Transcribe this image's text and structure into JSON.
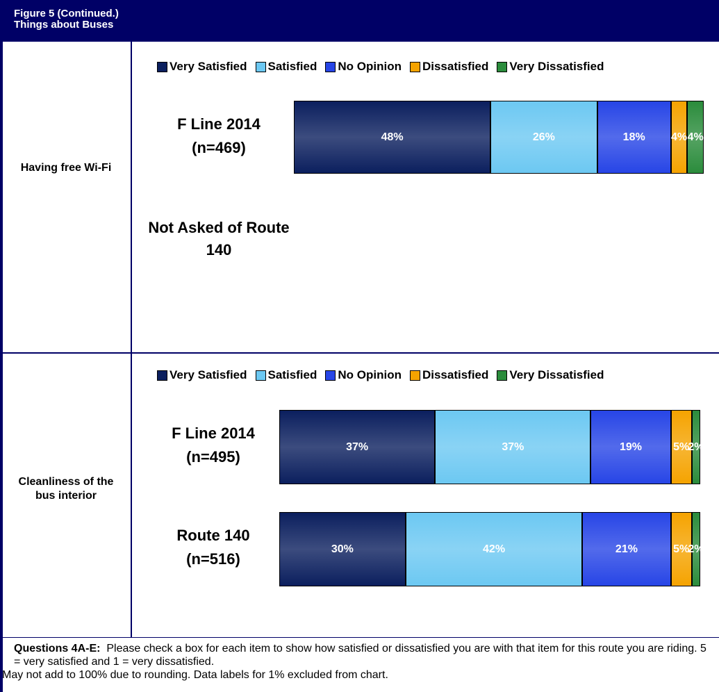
{
  "header": {
    "title": "Figure 5 (Continued.)",
    "subtitle": "Things about Buses"
  },
  "sections": [
    {
      "label": "Having free Wi-Fi",
      "note": "Not Asked of Route 140",
      "chart": {
        "type": "bar",
        "orientation": "horizontal",
        "stacked": true,
        "xlim": [
          0,
          100
        ],
        "categories": [
          "F Line 2014"
        ],
        "sample_sizes": [
          "(n=469)"
        ],
        "series": [
          {
            "name": "Very Satisfied",
            "color": "#0b1f5e",
            "values": [
              48
            ],
            "value_labels": [
              "48%"
            ]
          },
          {
            "name": "Satisfied",
            "color": "#6cc8f2",
            "values": [
              26
            ],
            "value_labels": [
              "26%"
            ]
          },
          {
            "name": "No Opinion",
            "color": "#2745e6",
            "values": [
              18
            ],
            "value_labels": [
              "18%"
            ]
          },
          {
            "name": "Dissatisfied",
            "color": "#f5a300",
            "values": [
              4
            ],
            "value_labels": [
              "4%"
            ]
          },
          {
            "name": "Very Dissatisfied",
            "color": "#2b8c3c",
            "values": [
              4
            ],
            "value_labels": [
              "4%"
            ]
          }
        ]
      }
    },
    {
      "label": "Cleanliness of the bus interior",
      "chart": {
        "type": "bar",
        "orientation": "horizontal",
        "stacked": true,
        "xlim": [
          0,
          100
        ],
        "categories": [
          "F Line 2014",
          "Route 140"
        ],
        "sample_sizes": [
          "(n=495)",
          "(n=516)"
        ],
        "series": [
          {
            "name": "Very Satisfied",
            "color": "#0b1f5e",
            "values": [
              37,
              30
            ],
            "value_labels": [
              "37%",
              "30%"
            ]
          },
          {
            "name": "Satisfied",
            "color": "#6cc8f2",
            "values": [
              37,
              42
            ],
            "value_labels": [
              "37%",
              "42%"
            ]
          },
          {
            "name": "No Opinion",
            "color": "#2745e6",
            "values": [
              19,
              21
            ],
            "value_labels": [
              "19%",
              "21%"
            ]
          },
          {
            "name": "Dissatisfied",
            "color": "#f5a300",
            "values": [
              5,
              5
            ],
            "value_labels": [
              "5%",
              "5%"
            ]
          },
          {
            "name": "Very Dissatisfied",
            "color": "#2b8c3c",
            "values": [
              2,
              2
            ],
            "value_labels": [
              "2%",
              "2%"
            ]
          }
        ]
      }
    }
  ],
  "footer": {
    "question_label": "Questions 4A-E:",
    "question": "Please check a box for each item to show how satisfied or dissatisfied you are with that item for this route you are riding.  5 = very satisfied and 1 = very dissatisfied.",
    "note": "May not add to 100% due to rounding. Data labels for 1% excluded from chart."
  }
}
